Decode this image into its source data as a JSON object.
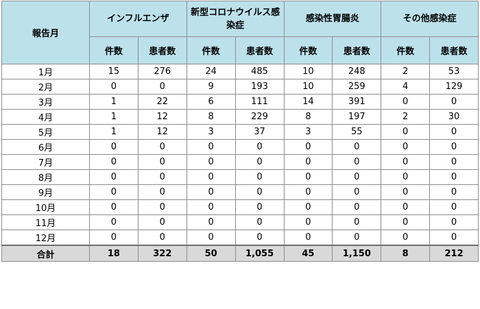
{
  "table": {
    "month_header": "報告月",
    "groups": [
      "インフルエンザ",
      "新型コロナウイルス感染症",
      "感染性胃腸炎",
      "その他感染症"
    ],
    "sub_headers": [
      "件数",
      "患者数"
    ],
    "rows": [
      {
        "month": "1月",
        "values": [
          "15",
          "276",
          "24",
          "485",
          "10",
          "248",
          "2",
          "53"
        ]
      },
      {
        "month": "2月",
        "values": [
          "0",
          "0",
          "9",
          "193",
          "10",
          "259",
          "4",
          "129"
        ]
      },
      {
        "month": "3月",
        "values": [
          "1",
          "22",
          "6",
          "111",
          "14",
          "391",
          "0",
          "0"
        ]
      },
      {
        "month": "4月",
        "values": [
          "1",
          "12",
          "8",
          "229",
          "8",
          "197",
          "2",
          "30"
        ]
      },
      {
        "month": "5月",
        "values": [
          "1",
          "12",
          "3",
          "37",
          "3",
          "55",
          "0",
          "0"
        ]
      },
      {
        "month": "6月",
        "values": [
          "0",
          "0",
          "0",
          "0",
          "0",
          "0",
          "0",
          "0"
        ]
      },
      {
        "month": "7月",
        "values": [
          "0",
          "0",
          "0",
          "0",
          "0",
          "0",
          "0",
          "0"
        ]
      },
      {
        "month": "8月",
        "values": [
          "0",
          "0",
          "0",
          "0",
          "0",
          "0",
          "0",
          "0"
        ]
      },
      {
        "month": "9月",
        "values": [
          "0",
          "0",
          "0",
          "0",
          "0",
          "0",
          "0",
          "0"
        ]
      },
      {
        "month": "10月",
        "values": [
          "0",
          "0",
          "0",
          "0",
          "0",
          "0",
          "0",
          "0"
        ]
      },
      {
        "month": "11月",
        "values": [
          "0",
          "0",
          "0",
          "0",
          "0",
          "0",
          "0",
          "0"
        ]
      },
      {
        "month": "12月",
        "values": [
          "0",
          "0",
          "0",
          "0",
          "0",
          "0",
          "0",
          "0"
        ]
      }
    ],
    "total": {
      "label": "合計",
      "values": [
        "18",
        "322",
        "50",
        "1,055",
        "45",
        "1,150",
        "8",
        "212"
      ]
    }
  },
  "colors": {
    "header_bg": "#bde1eb",
    "total_bg": "#d9d9d9",
    "border": "#8c8c8c"
  }
}
